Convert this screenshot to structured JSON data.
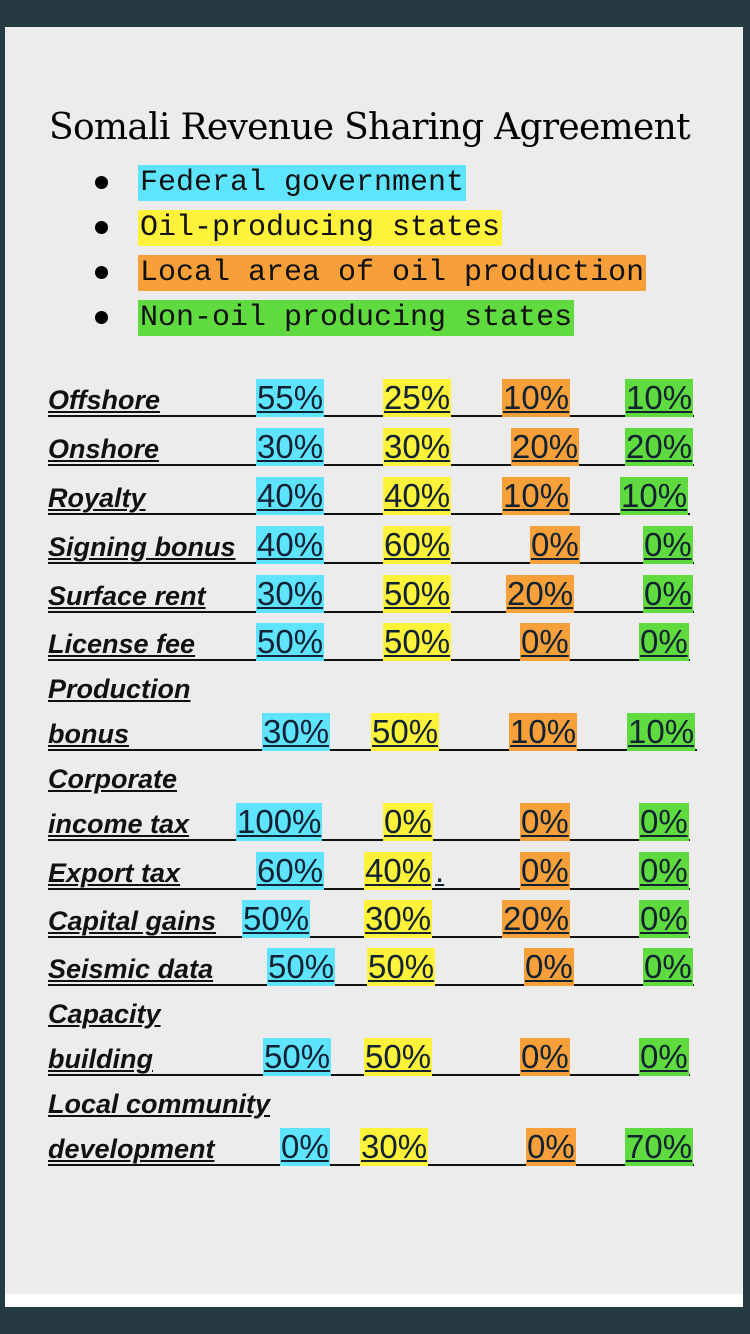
{
  "title": "Somali Revenue Sharing Agreement",
  "legend": [
    {
      "label": "Federal government",
      "color": "#5fe4ff"
    },
    {
      "label": "Oil-producing states",
      "color": "#fff23b"
    },
    {
      "label": "Local area of oil production",
      "color": "#f7a03a"
    },
    {
      "label": "Non-oil producing states",
      "color": "#5fda3f"
    }
  ],
  "rows": [
    {
      "label": "Offshore",
      "federal": "55%",
      "oil_states": "25%",
      "local_area": "10%",
      "non_oil_states": "10%"
    },
    {
      "label": "Onshore",
      "federal": "30%",
      "oil_states": "30%",
      "local_area": "20%",
      "non_oil_states": "20%"
    },
    {
      "label": "Royalty",
      "federal": "40%",
      "oil_states": "40%",
      "local_area": "10%",
      "non_oil_states": "10%"
    },
    {
      "label": "Signing bonus",
      "federal": "40%",
      "oil_states": "60%",
      "local_area": "0%",
      "non_oil_states": "0%"
    },
    {
      "label": "Surface rent",
      "federal": "30%",
      "oil_states": "50%",
      "local_area": "20%",
      "non_oil_states": "0%"
    },
    {
      "label": "License fee",
      "federal": "50%",
      "oil_states": "50%",
      "local_area": "0%",
      "non_oil_states": "0%"
    },
    {
      "label_line1": "Production",
      "label_line2": "bonus",
      "federal": "30%",
      "oil_states": "50%",
      "local_area": "10%",
      "non_oil_states": "10%"
    },
    {
      "label_line1": "Corporate",
      "label_line2": "income tax",
      "federal": "100%",
      "oil_states": "0%",
      "local_area": "0%",
      "non_oil_states": "0%"
    },
    {
      "label": "Export tax",
      "federal": "60%",
      "oil_states": "40%",
      "oil_states_suffix": ".",
      "local_area": "0%",
      "non_oil_states": "0%"
    },
    {
      "label": "Capital gains",
      "federal": "50%",
      "oil_states": "30%",
      "local_area": "20%",
      "non_oil_states": "0%"
    },
    {
      "label": "Seismic data",
      "federal": "50%",
      "oil_states": "50%",
      "local_area": "0%",
      "non_oil_states": "0%"
    },
    {
      "label_line1": "Capacity",
      "label_line2": "building",
      "federal": "50%",
      "oil_states": "50%",
      "local_area": "0%",
      "non_oil_states": "0%"
    },
    {
      "label_line1": "Local community",
      "label_line2": "development",
      "federal": "0%",
      "oil_states": "30%",
      "local_area": "0%",
      "non_oil_states": "70%"
    }
  ]
}
